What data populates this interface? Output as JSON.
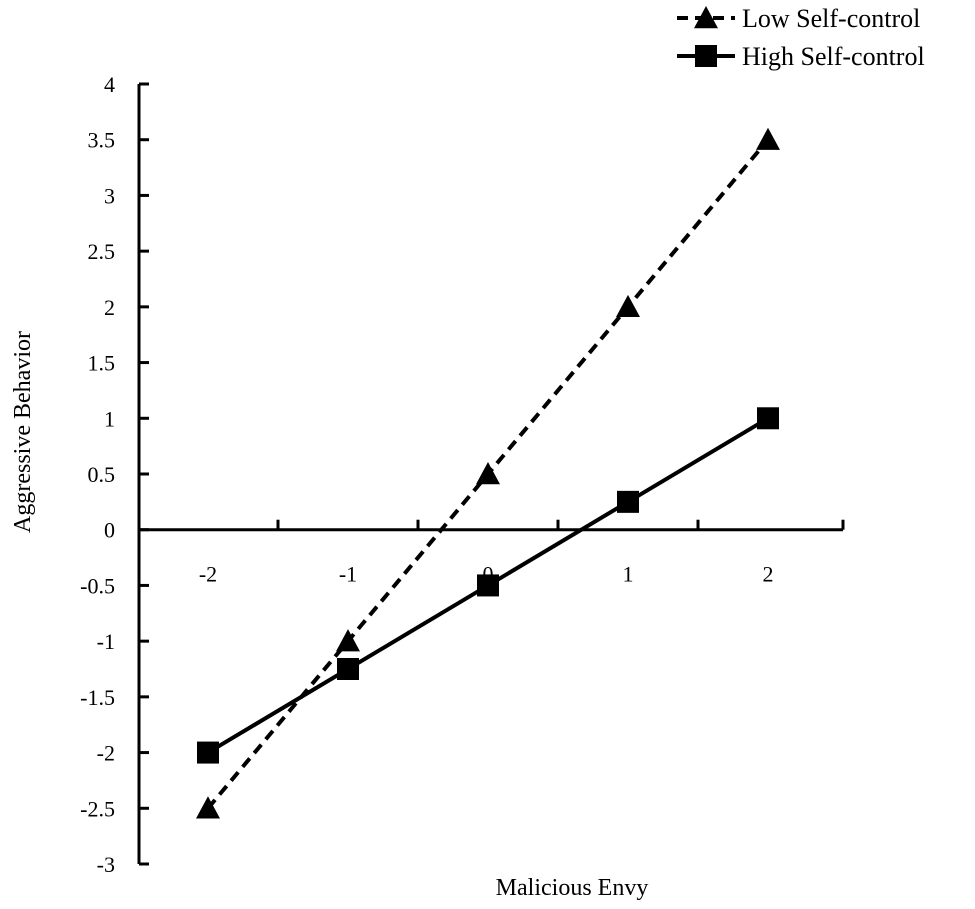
{
  "chart_data": {
    "type": "line",
    "xlabel": "Malicious Envy",
    "ylabel": "Aggressive Behavior",
    "x": [
      -2,
      -1,
      0,
      1,
      2
    ],
    "xticks": [
      "-2",
      "-1",
      "0",
      "1",
      "2"
    ],
    "yticks": [
      "4",
      "3.5",
      "3",
      "2.5",
      "2",
      "1.5",
      "1",
      "0.5",
      "0",
      "-0.5",
      "-1",
      "-1.5",
      "-2",
      "-2.5",
      "-3"
    ],
    "xlim": [
      -2.5,
      2.5
    ],
    "ylim": [
      -3,
      4
    ],
    "grid": false,
    "legend_position": "top-right",
    "series": [
      {
        "name": "Low Self-control",
        "values": [
          -2.5,
          -1,
          0.5,
          2,
          3.5
        ],
        "marker": "triangle",
        "line_style": "dashed",
        "color": "#000000"
      },
      {
        "name": "High Self-control",
        "values": [
          -2,
          -1.25,
          -0.5,
          0.25,
          1
        ],
        "marker": "square",
        "line_style": "solid",
        "color": "#000000"
      }
    ]
  }
}
